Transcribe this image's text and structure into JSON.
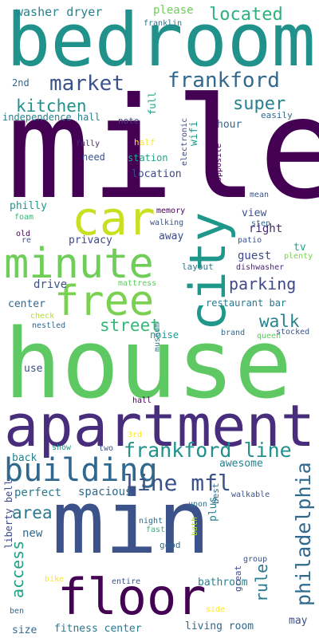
{
  "words": [
    {
      "text": "bedroom",
      "color": "#21918c",
      "vertical": false
    },
    {
      "text": "mile",
      "color": "#440154",
      "vertical": false
    },
    {
      "text": "house",
      "color": "#5ec962",
      "vertical": false
    },
    {
      "text": "min",
      "color": "#3b528b",
      "vertical": false
    },
    {
      "text": "apartment",
      "color": "#472d7b",
      "vertical": false
    },
    {
      "text": "car",
      "color": "#c8e020",
      "vertical": false
    },
    {
      "text": "minute",
      "color": "#6ece58",
      "vertical": false
    },
    {
      "text": "free",
      "color": "#7ad151",
      "vertical": false
    },
    {
      "text": "city",
      "color": "#1f988b",
      "vertical": true
    },
    {
      "text": "floor",
      "color": "#440154",
      "vertical": false
    },
    {
      "text": "building",
      "color": "#31688e",
      "vertical": false
    },
    {
      "text": "frankford line",
      "color": "#21918c",
      "vertical": false
    },
    {
      "text": "line mfl",
      "color": "#3b528b",
      "vertical": false
    },
    {
      "text": "philadelphia",
      "color": "#31688e",
      "vertical": true
    },
    {
      "text": "market",
      "color": "#3b528b",
      "vertical": false
    },
    {
      "text": "frankford",
      "color": "#31688e",
      "vertical": false
    },
    {
      "text": "located",
      "color": "#2db27d",
      "vertical": false
    },
    {
      "text": "kitchen",
      "color": "#21918c",
      "vertical": false
    },
    {
      "text": "super",
      "color": "#26828e",
      "vertical": false
    },
    {
      "text": "parking",
      "color": "#3e4989",
      "vertical": false
    },
    {
      "text": "street",
      "color": "#35b779",
      "vertical": false
    },
    {
      "text": "walk",
      "color": "#26828e",
      "vertical": false
    },
    {
      "text": "area",
      "color": "#2a788e",
      "vertical": false
    },
    {
      "text": "access",
      "color": "#20a386",
      "vertical": true
    },
    {
      "text": "rule",
      "color": "#2a788e",
      "vertical": true
    },
    {
      "text": "washer dryer",
      "color": "#26828e",
      "vertical": false
    },
    {
      "text": "please",
      "color": "#6ece58",
      "vertical": false
    },
    {
      "text": "franklin",
      "color": "#2a788e",
      "vertical": false
    },
    {
      "text": "2nd",
      "color": "#31688e",
      "vertical": false
    },
    {
      "text": "full",
      "color": "#20a386",
      "vertical": true
    },
    {
      "text": "independence hall",
      "color": "#26828e",
      "vertical": false
    },
    {
      "text": "note",
      "color": "#414487",
      "vertical": false
    },
    {
      "text": "easily",
      "color": "#31688e",
      "vertical": false
    },
    {
      "text": "wifi",
      "color": "#1f988b",
      "vertical": true
    },
    {
      "text": "hour",
      "color": "#31688e",
      "vertical": false
    },
    {
      "text": "fully",
      "color": "#482878",
      "vertical": false
    },
    {
      "text": "half",
      "color": "#fde725",
      "vertical": false
    },
    {
      "text": "electronic",
      "color": "#3e4989",
      "vertical": true
    },
    {
      "text": "opposite",
      "color": "#440154",
      "vertical": true
    },
    {
      "text": "need",
      "color": "#3b528b",
      "vertical": false
    },
    {
      "text": "station",
      "color": "#20a386",
      "vertical": false
    },
    {
      "text": "mean",
      "color": "#3b528b",
      "vertical": false
    },
    {
      "text": "location",
      "color": "#3e4989",
      "vertical": false
    },
    {
      "text": "philly",
      "color": "#1f988b",
      "vertical": false
    },
    {
      "text": "memory",
      "color": "#440154",
      "vertical": false
    },
    {
      "text": "view",
      "color": "#3b528b",
      "vertical": false
    },
    {
      "text": "foam",
      "color": "#35b779",
      "vertical": false
    },
    {
      "text": "step",
      "color": "#31688e",
      "vertical": false
    },
    {
      "text": "old",
      "color": "#440154",
      "vertical": false
    },
    {
      "text": "walking",
      "color": "#3b528b",
      "vertical": false
    },
    {
      "text": "right",
      "color": "#482878",
      "vertical": false
    },
    {
      "text": "away",
      "color": "#3e4989",
      "vertical": false
    },
    {
      "text": "re",
      "color": "#3b528b",
      "vertical": false
    },
    {
      "text": "privacy",
      "color": "#3e4989",
      "vertical": false
    },
    {
      "text": "patio",
      "color": "#3b528b",
      "vertical": false
    },
    {
      "text": "tv",
      "color": "#20a386",
      "vertical": false
    },
    {
      "text": "plenty",
      "color": "#7ad151",
      "vertical": false
    },
    {
      "text": "guest",
      "color": "#3e4989",
      "vertical": false
    },
    {
      "text": "layout",
      "color": "#2a788e",
      "vertical": false
    },
    {
      "text": "dishwasher",
      "color": "#482878",
      "vertical": false
    },
    {
      "text": "drive",
      "color": "#3b528b",
      "vertical": false
    },
    {
      "text": "mattress",
      "color": "#5ec962",
      "vertical": false
    },
    {
      "text": "center",
      "color": "#31688e",
      "vertical": false
    },
    {
      "text": "restaurant bar",
      "color": "#2a788e",
      "vertical": false
    },
    {
      "text": "check",
      "color": "#b5de2b",
      "vertical": false
    },
    {
      "text": "nestled",
      "color": "#31688e",
      "vertical": false
    },
    {
      "text": "noise",
      "color": "#1f988b",
      "vertical": false
    },
    {
      "text": "queen",
      "color": "#5ec962",
      "vertical": false
    },
    {
      "text": "brand",
      "color": "#31688e",
      "vertical": false
    },
    {
      "text": "stocked",
      "color": "#3b528b",
      "vertical": false
    },
    {
      "text": "use",
      "color": "#3b528b",
      "vertical": false
    },
    {
      "text": "museum",
      "color": "#2a788e",
      "vertical": true
    },
    {
      "text": "hall",
      "color": "#440154",
      "vertical": false
    },
    {
      "text": "3rd",
      "color": "#fde725",
      "vertical": false
    },
    {
      "text": "show",
      "color": "#1f988b",
      "vertical": false
    },
    {
      "text": "two",
      "color": "#3b528b",
      "vertical": false
    },
    {
      "text": "back",
      "color": "#26828e",
      "vertical": false
    },
    {
      "text": "awesome",
      "color": "#26828e",
      "vertical": false
    },
    {
      "text": "perfect",
      "color": "#2a788e",
      "vertical": false
    },
    {
      "text": "spacious",
      "color": "#31688e",
      "vertical": false
    },
    {
      "text": "best",
      "color": "#31688e",
      "vertical": true
    },
    {
      "text": "upon",
      "color": "#2a788e",
      "vertical": false
    },
    {
      "text": "walkable",
      "color": "#3b528b",
      "vertical": false
    },
    {
      "text": "new",
      "color": "#31688e",
      "vertical": false
    },
    {
      "text": "night",
      "color": "#31688e",
      "vertical": false
    },
    {
      "text": "fast",
      "color": "#35b779",
      "vertical": false
    },
    {
      "text": "plus",
      "color": "#26828e",
      "vertical": true
    },
    {
      "text": "bath",
      "color": "#b5de2b",
      "vertical": true
    },
    {
      "text": "good",
      "color": "#31688e",
      "vertical": false
    },
    {
      "text": "group",
      "color": "#3b528b",
      "vertical": false
    },
    {
      "text": "liberty bell",
      "color": "#3e4989",
      "vertical": true
    },
    {
      "text": "bike",
      "color": "#fde725",
      "vertical": false
    },
    {
      "text": "entire",
      "color": "#3b528b",
      "vertical": false
    },
    {
      "text": "bathroom",
      "color": "#26828e",
      "vertical": false
    },
    {
      "text": "great",
      "color": "#3e4989",
      "vertical": true
    },
    {
      "text": "ben",
      "color": "#31688e",
      "vertical": false
    },
    {
      "text": "side",
      "color": "#fde725",
      "vertical": false
    },
    {
      "text": "living room",
      "color": "#31688e",
      "vertical": false
    },
    {
      "text": "may",
      "color": "#3b528b",
      "vertical": false
    },
    {
      "text": "size",
      "color": "#31688e",
      "vertical": false
    },
    {
      "text": "fitness center",
      "color": "#2a788e",
      "vertical": false
    }
  ]
}
